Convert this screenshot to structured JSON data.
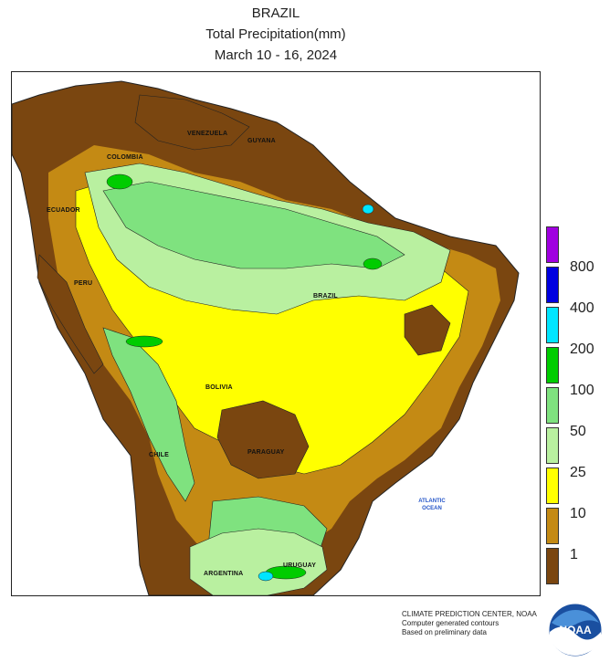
{
  "header": {
    "title": "BRAZIL",
    "subtitle": "Total Precipitation(mm)",
    "date_range": "March 10 - 16, 2024"
  },
  "map": {
    "countries": [
      "VENEZUELA",
      "GUYANA",
      "COLOMBIA",
      "ECUADOR",
      "PERU",
      "BRAZIL",
      "BOLIVIA",
      "PARAGUAY",
      "CHILE",
      "URUGUAY",
      "ARGENTINA"
    ],
    "ocean": [
      "ATLANTIC",
      "OCEAN"
    ]
  },
  "legend": {
    "colors": [
      "#a000e0",
      "#0000e0",
      "#00e5ff",
      "#00cc00",
      "#7fe27f",
      "#b9f0a0",
      "#ffff00",
      "#c48a14",
      "#7a4610"
    ],
    "ticks": [
      "800",
      "400",
      "200",
      "100",
      "50",
      "25",
      "10",
      "1"
    ]
  },
  "credits": {
    "line1": "CLIMATE PREDICTION CENTER, NOAA",
    "line2": "Computer generated contours",
    "line3": "Based on preliminary data"
  },
  "logo": {
    "text": "NOAA",
    "icon": "noaa-logo-icon"
  }
}
